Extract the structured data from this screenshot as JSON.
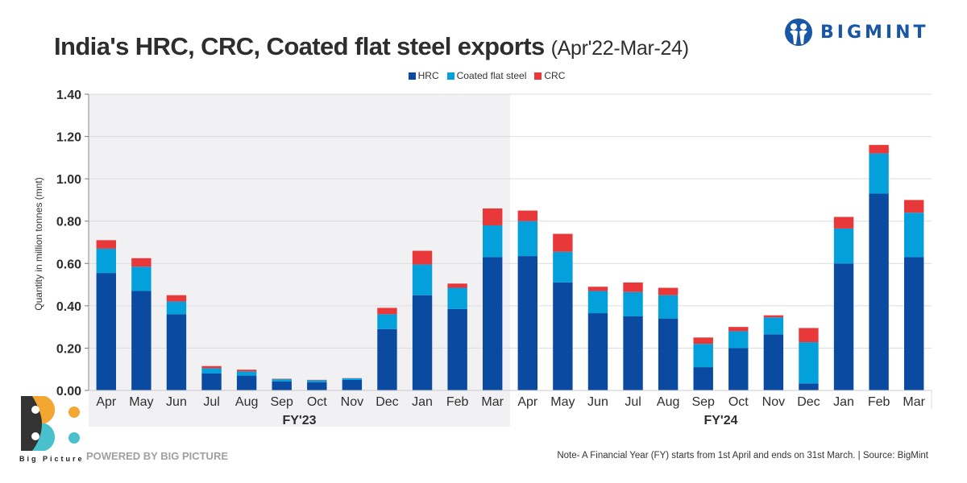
{
  "header": {
    "title": "India's HRC, CRC, Coated flat steel exports",
    "subtitle": "(Apr'22-Mar-24)",
    "brand_name": "BIGMINT"
  },
  "footer": {
    "logo_text": "Big Picture",
    "powered_by": "POWERED BY BIG PICTURE",
    "note": "Note- A Financial Year (FY) starts from 1st April and ends on 31st March. | Source: BigMint"
  },
  "colors": {
    "HRC": "#0a4aa1",
    "Coated flat steel": "#03a0dc",
    "CRC": "#e8383a",
    "fy23_background": "#f1f1f3",
    "brand": "#1a56a6"
  },
  "chart_data": {
    "type": "bar",
    "stacked": true,
    "title": "India's HRC, CRC, Coated flat steel exports (Apr'22-Mar-24)",
    "xlabel": "",
    "ylabel": "Quantity in million tonnes (mnt)",
    "ylim": [
      0,
      1.4
    ],
    "yticks": [
      "0.00",
      "0.20",
      "0.40",
      "0.60",
      "0.80",
      "1.00",
      "1.20",
      "1.40"
    ],
    "ytick_values": [
      0,
      0.2,
      0.4,
      0.6,
      0.8,
      1.0,
      1.2,
      1.4
    ],
    "grid": true,
    "legend_position": "top-center",
    "categories": [
      "Apr",
      "May",
      "Jun",
      "Jul",
      "Aug",
      "Sep",
      "Oct",
      "Nov",
      "Dec",
      "Jan",
      "Feb",
      "Mar",
      "Apr",
      "May",
      "Jun",
      "Jul",
      "Aug",
      "Sep",
      "Oct",
      "Nov",
      "Dec",
      "Jan",
      "Feb",
      "Mar"
    ],
    "groups": [
      {
        "label": "FY'23",
        "start": 0,
        "end": 11,
        "shaded": true
      },
      {
        "label": "FY'24",
        "start": 12,
        "end": 23,
        "shaded": false
      }
    ],
    "series": [
      {
        "name": "HRC",
        "values": [
          0.555,
          0.47,
          0.36,
          0.08,
          0.07,
          0.042,
          0.038,
          0.05,
          0.29,
          0.45,
          0.385,
          0.63,
          0.635,
          0.51,
          0.365,
          0.35,
          0.34,
          0.11,
          0.2,
          0.265,
          0.033,
          0.6,
          0.93,
          0.63
        ]
      },
      {
        "name": "Coated flat steel",
        "values": [
          0.115,
          0.115,
          0.06,
          0.025,
          0.02,
          0.011,
          0.01,
          0.007,
          0.07,
          0.145,
          0.1,
          0.15,
          0.165,
          0.145,
          0.105,
          0.115,
          0.11,
          0.11,
          0.08,
          0.08,
          0.195,
          0.165,
          0.19,
          0.21
        ]
      },
      {
        "name": "CRC",
        "values": [
          0.04,
          0.04,
          0.03,
          0.01,
          0.008,
          0.002,
          0.002,
          0.001,
          0.03,
          0.065,
          0.02,
          0.08,
          0.05,
          0.085,
          0.02,
          0.045,
          0.035,
          0.03,
          0.02,
          0.01,
          0.067,
          0.055,
          0.04,
          0.06
        ]
      }
    ]
  }
}
